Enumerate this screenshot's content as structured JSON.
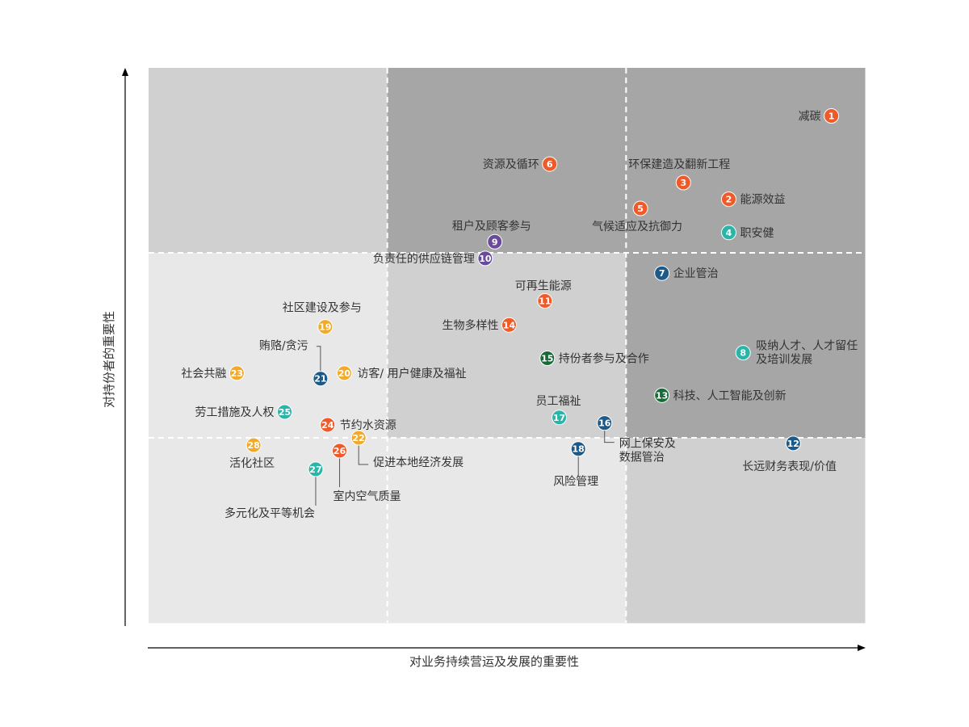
{
  "colors": {
    "environment": "#f05a28",
    "social": "#2bb5a8",
    "governance": "#1c5a8a",
    "supply_chain": "#6a4a9a",
    "community": "#f2aa2a",
    "innovation": "#176b36",
    "zone_dark": "#a6a6a6",
    "zone_mid": "#d0d0d0",
    "zone_light": "#e8e8e8"
  },
  "chart_data": {
    "type": "scatter",
    "xlabel": "对业务持续营运及发展的重要性",
    "ylabel": "对持份者的重要性",
    "xlim": [
      0,
      3
    ],
    "ylim": [
      0,
      3
    ],
    "grid": "3x3 dashed",
    "points": [
      {
        "id": 1,
        "label": "减碳",
        "x": 2.86,
        "y": 2.74,
        "cat": "environment"
      },
      {
        "id": 2,
        "label": "能源效益",
        "x": 2.43,
        "y": 2.29,
        "cat": "environment"
      },
      {
        "id": 3,
        "label": "环保建造及翻新工程",
        "x": 2.24,
        "y": 2.38,
        "cat": "environment"
      },
      {
        "id": 4,
        "label": "职安健",
        "x": 2.43,
        "y": 2.11,
        "cat": "social"
      },
      {
        "id": 5,
        "label": "气候适应及抗御力",
        "x": 2.06,
        "y": 2.24,
        "cat": "environment"
      },
      {
        "id": 6,
        "label": "资源及循环",
        "x": 1.68,
        "y": 2.48,
        "cat": "environment"
      },
      {
        "id": 7,
        "label": "企业管治",
        "x": 2.15,
        "y": 1.89,
        "cat": "governance"
      },
      {
        "id": 8,
        "label": "吸纳人才、人才留任\n及培训发展",
        "x": 2.49,
        "y": 1.46,
        "cat": "social"
      },
      {
        "id": 9,
        "label": "租户及顾客参与",
        "x": 1.45,
        "y": 2.06,
        "cat": "supply_chain"
      },
      {
        "id": 10,
        "label": "负责任的供应链管理",
        "x": 1.41,
        "y": 1.97,
        "cat": "supply_chain"
      },
      {
        "id": 11,
        "label": "可再生能源",
        "x": 1.66,
        "y": 1.74,
        "cat": "environment"
      },
      {
        "id": 12,
        "label": "长远财务表现/价值",
        "x": 2.7,
        "y": 0.97,
        "cat": "governance"
      },
      {
        "id": 13,
        "label": "科技、人工智能及创新",
        "x": 2.15,
        "y": 1.23,
        "cat": "innovation"
      },
      {
        "id": 14,
        "label": "生物多样性",
        "x": 1.51,
        "y": 1.61,
        "cat": "environment"
      },
      {
        "id": 15,
        "label": "持份者参与及合作",
        "x": 1.67,
        "y": 1.43,
        "cat": "innovation"
      },
      {
        "id": 16,
        "label": "网上保安及\n数据管治",
        "x": 1.91,
        "y": 1.08,
        "cat": "governance"
      },
      {
        "id": 17,
        "label": "员工福祉",
        "x": 1.72,
        "y": 1.11,
        "cat": "social"
      },
      {
        "id": 18,
        "label": "风险管理",
        "x": 1.8,
        "y": 0.94,
        "cat": "governance"
      },
      {
        "id": 19,
        "label": "社区建设及参与",
        "x": 0.74,
        "y": 1.6,
        "cat": "community"
      },
      {
        "id": 20,
        "label": "访客/ 用户健康及福祉",
        "x": 0.82,
        "y": 1.35,
        "cat": "community"
      },
      {
        "id": 21,
        "label": "贿赂/贪污",
        "x": 0.72,
        "y": 1.32,
        "cat": "governance"
      },
      {
        "id": 22,
        "label": "促进本地经济发展",
        "x": 0.88,
        "y": 1.0,
        "cat": "community"
      },
      {
        "id": 23,
        "label": "社会共融",
        "x": 0.37,
        "y": 1.35,
        "cat": "community"
      },
      {
        "id": 24,
        "label": "节约水资源",
        "x": 0.75,
        "y": 1.07,
        "cat": "environment"
      },
      {
        "id": 25,
        "label": "劳工措施及人权",
        "x": 0.57,
        "y": 1.14,
        "cat": "social"
      },
      {
        "id": 26,
        "label": "室内空气质量",
        "x": 0.8,
        "y": 0.93,
        "cat": "environment"
      },
      {
        "id": 27,
        "label": "多元化及平等机会",
        "x": 0.7,
        "y": 0.83,
        "cat": "social"
      },
      {
        "id": 28,
        "label": "活化社区",
        "x": 0.44,
        "y": 0.96,
        "cat": "community"
      }
    ]
  }
}
